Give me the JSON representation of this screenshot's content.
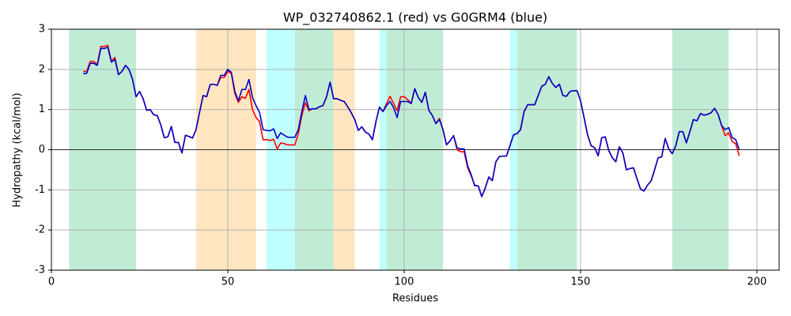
{
  "chart_data": {
    "type": "line",
    "title": "WP_032740862.1 (red) vs G0GRM4 (blue)",
    "x_label": "Residues",
    "y_label": "Hydropathy (kcal/mol)",
    "xlim": [
      0,
      206.3
    ],
    "ylim": [
      -3,
      3
    ],
    "xticks": [
      0,
      50,
      100,
      150,
      200
    ],
    "yticks": [
      -3,
      -2,
      -1,
      0,
      1,
      2,
      3
    ],
    "grid": true,
    "zero_line": true,
    "regions": [
      {
        "start": 5,
        "end": 24,
        "color": "#c0ecd5"
      },
      {
        "start": 41,
        "end": 58,
        "color": "#ffe6c0"
      },
      {
        "start": 61,
        "end": 69,
        "color": "#c0ffff"
      },
      {
        "start": 69,
        "end": 80,
        "color": "#c0ecd5"
      },
      {
        "start": 80,
        "end": 86,
        "color": "#ffe6c0"
      },
      {
        "start": 93,
        "end": 95,
        "color": "#c0ffff"
      },
      {
        "start": 95,
        "end": 111,
        "color": "#c0ecd5"
      },
      {
        "start": 130,
        "end": 132,
        "color": "#c0ffff"
      },
      {
        "start": 132,
        "end": 149,
        "color": "#c0ecd5"
      },
      {
        "start": 176,
        "end": 192,
        "color": "#c0ecd5"
      }
    ],
    "x": [
      9,
      10,
      11,
      12,
      13,
      14,
      15,
      16,
      17,
      18,
      19,
      20,
      21,
      22,
      23,
      24,
      25,
      26,
      27,
      28,
      29,
      30,
      31,
      32,
      33,
      34,
      35,
      36,
      37,
      38,
      39,
      40,
      41,
      42,
      43,
      44,
      45,
      46,
      47,
      48,
      49,
      50,
      51,
      52,
      53,
      54,
      55,
      56,
      57,
      58,
      59,
      60,
      61,
      62,
      63,
      64,
      65,
      66,
      67,
      68,
      69,
      70,
      71,
      72,
      73,
      74,
      75,
      76,
      77,
      78,
      79,
      80,
      81,
      82,
      83,
      84,
      85,
      86,
      87,
      88,
      89,
      90,
      91,
      92,
      93,
      94,
      95,
      96,
      97,
      98,
      99,
      100,
      101,
      102,
      103,
      104,
      105,
      106,
      107,
      108,
      109,
      110,
      111,
      112,
      113,
      114,
      115,
      116,
      117,
      118,
      119,
      120,
      121,
      122,
      123,
      124,
      125,
      126,
      127,
      128,
      129,
      130,
      131,
      132,
      133,
      134,
      135,
      136,
      137,
      138,
      139,
      140,
      141,
      142,
      143,
      144,
      145,
      146,
      147,
      148,
      149,
      150,
      151,
      152,
      153,
      154,
      155,
      156,
      157,
      158,
      159,
      160,
      161,
      162,
      163,
      164,
      165,
      166,
      167,
      168,
      169,
      170,
      171,
      172,
      173,
      174,
      175,
      176,
      177,
      178,
      179,
      180,
      181,
      182,
      183,
      184,
      185,
      186,
      187,
      188,
      189,
      190,
      191,
      192,
      193,
      194,
      195
    ],
    "series": [
      {
        "color": "#ff0000",
        "values": [
          1.95,
          1.95,
          2.2,
          2.2,
          2.12,
          2.57,
          2.57,
          2.6,
          2.2,
          2.3,
          1.87,
          1.95,
          2.1,
          2.0,
          1.75,
          1.32,
          1.45,
          1.27,
          0.98,
          1.0,
          0.87,
          0.85,
          0.62,
          0.3,
          0.32,
          0.58,
          0.18,
          0.18,
          -0.08,
          0.36,
          0.33,
          0.29,
          0.5,
          0.93,
          1.35,
          1.32,
          1.62,
          1.63,
          1.6,
          1.8,
          1.8,
          1.95,
          1.9,
          1.4,
          1.18,
          1.32,
          1.28,
          1.5,
          1.0,
          0.8,
          0.7,
          0.25,
          0.25,
          0.23,
          0.26,
          0.02,
          0.17,
          0.15,
          0.12,
          0.12,
          0.12,
          0.4,
          0.85,
          1.17,
          0.97,
          1.02,
          1.02,
          1.07,
          1.1,
          1.32,
          1.68,
          1.27,
          1.27,
          1.23,
          1.2,
          1.07,
          0.92,
          0.75,
          0.48,
          0.57,
          0.44,
          0.39,
          0.25,
          0.7,
          1.06,
          0.95,
          1.15,
          1.33,
          1.15,
          0.97,
          1.32,
          1.32,
          1.25,
          1.15,
          1.52,
          1.3,
          1.18,
          1.43,
          0.98,
          0.85,
          0.65,
          0.78,
          0.5,
          0.12,
          0.22,
          0.35,
          0.0,
          -0.05,
          -0.05,
          -0.45,
          -0.65,
          -0.88,
          -0.9,
          -1.17,
          -0.95,
          -0.68,
          -0.77,
          -0.3,
          -0.17,
          -0.16,
          -0.16,
          0.1,
          0.37,
          0.4,
          0.5,
          0.95,
          1.12,
          1.12,
          1.12,
          1.35,
          1.58,
          1.63,
          1.82,
          1.65,
          1.55,
          1.63,
          1.35,
          1.33,
          1.45,
          1.47,
          1.47,
          1.22,
          0.8,
          0.37,
          0.1,
          0.05,
          -0.15,
          0.3,
          0.32,
          -0.02,
          -0.2,
          -0.3,
          0.07,
          -0.08,
          -0.5,
          -0.47,
          -0.45,
          -0.72,
          -0.98,
          -1.03,
          -0.88,
          -0.78,
          -0.5,
          -0.2,
          -0.18,
          0.28,
          0.02,
          -0.1,
          0.1,
          0.45,
          0.45,
          0.17,
          0.45,
          0.75,
          0.72,
          0.9,
          0.86,
          0.88,
          0.92,
          1.03,
          0.88,
          0.6,
          0.35,
          0.42,
          0.2,
          0.15,
          -0.15
        ]
      },
      {
        "color": "#0000cc",
        "values": [
          1.9,
          1.9,
          2.15,
          2.15,
          2.1,
          2.52,
          2.52,
          2.55,
          2.18,
          2.25,
          1.87,
          1.95,
          2.1,
          2.0,
          1.75,
          1.32,
          1.45,
          1.27,
          0.98,
          1.0,
          0.87,
          0.85,
          0.62,
          0.3,
          0.32,
          0.58,
          0.18,
          0.18,
          -0.08,
          0.36,
          0.33,
          0.29,
          0.5,
          0.93,
          1.35,
          1.32,
          1.62,
          1.63,
          1.6,
          1.85,
          1.85,
          2.0,
          1.93,
          1.45,
          1.22,
          1.5,
          1.5,
          1.75,
          1.3,
          1.1,
          0.93,
          0.5,
          0.48,
          0.47,
          0.52,
          0.28,
          0.42,
          0.36,
          0.31,
          0.31,
          0.31,
          0.5,
          0.95,
          1.35,
          1.0,
          1.02,
          1.02,
          1.07,
          1.1,
          1.32,
          1.68,
          1.27,
          1.27,
          1.23,
          1.2,
          1.07,
          0.92,
          0.75,
          0.48,
          0.57,
          0.44,
          0.39,
          0.25,
          0.7,
          1.06,
          0.95,
          1.1,
          1.2,
          1.05,
          0.8,
          1.2,
          1.2,
          1.2,
          1.15,
          1.52,
          1.3,
          1.18,
          1.43,
          0.98,
          0.85,
          0.65,
          0.75,
          0.5,
          0.12,
          0.22,
          0.35,
          0.05,
          0.02,
          0.02,
          -0.4,
          -0.62,
          -0.9,
          -0.9,
          -1.17,
          -0.95,
          -0.68,
          -0.77,
          -0.3,
          -0.17,
          -0.16,
          -0.16,
          0.1,
          0.37,
          0.4,
          0.5,
          0.95,
          1.12,
          1.12,
          1.12,
          1.35,
          1.58,
          1.63,
          1.82,
          1.65,
          1.55,
          1.63,
          1.35,
          1.33,
          1.45,
          1.47,
          1.47,
          1.22,
          0.8,
          0.37,
          0.1,
          0.05,
          -0.15,
          0.3,
          0.32,
          -0.02,
          -0.2,
          -0.3,
          0.07,
          -0.08,
          -0.5,
          -0.47,
          -0.45,
          -0.72,
          -0.98,
          -1.03,
          -0.88,
          -0.78,
          -0.5,
          -0.2,
          -0.18,
          0.28,
          0.02,
          -0.1,
          0.1,
          0.45,
          0.45,
          0.17,
          0.45,
          0.75,
          0.72,
          0.9,
          0.86,
          0.88,
          0.92,
          1.03,
          0.88,
          0.6,
          0.5,
          0.55,
          0.3,
          0.25,
          0.0
        ]
      }
    ]
  }
}
